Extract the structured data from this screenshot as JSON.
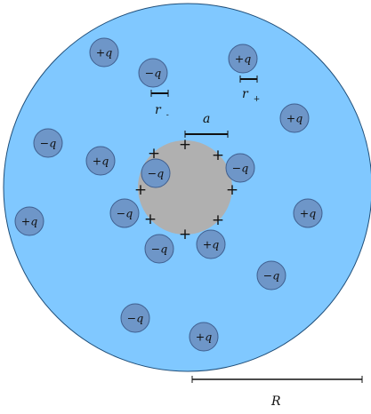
{
  "colors": {
    "solvent": "#80C8FF",
    "solvent_border": "#1F4E79",
    "particle": "#B0B0B0",
    "ion": "#6E96C8",
    "ion_border": "#3F5F8F",
    "ink": "#111111"
  },
  "ions": [
    {
      "label": "+q"
    },
    {
      "label": "−q"
    },
    {
      "label": "+q"
    },
    {
      "label": "+q"
    },
    {
      "label": "−q"
    },
    {
      "label": "+q"
    },
    {
      "label": "−q"
    },
    {
      "label": "−q"
    },
    {
      "label": "−q"
    },
    {
      "label": "+q"
    },
    {
      "label": "+q"
    },
    {
      "label": "−q"
    },
    {
      "label": "+q"
    },
    {
      "label": "−q"
    },
    {
      "label": "−q"
    },
    {
      "label": "+q"
    }
  ],
  "surface_charges": [
    "+",
    "+",
    "+",
    "+",
    "+",
    "+",
    "+",
    "+"
  ],
  "labels": {
    "radius_particle": "a",
    "radius_sphere": "R",
    "r_minus_base": "r",
    "r_minus_sub": "-",
    "r_plus_base": "r",
    "r_plus_sub": "+"
  }
}
